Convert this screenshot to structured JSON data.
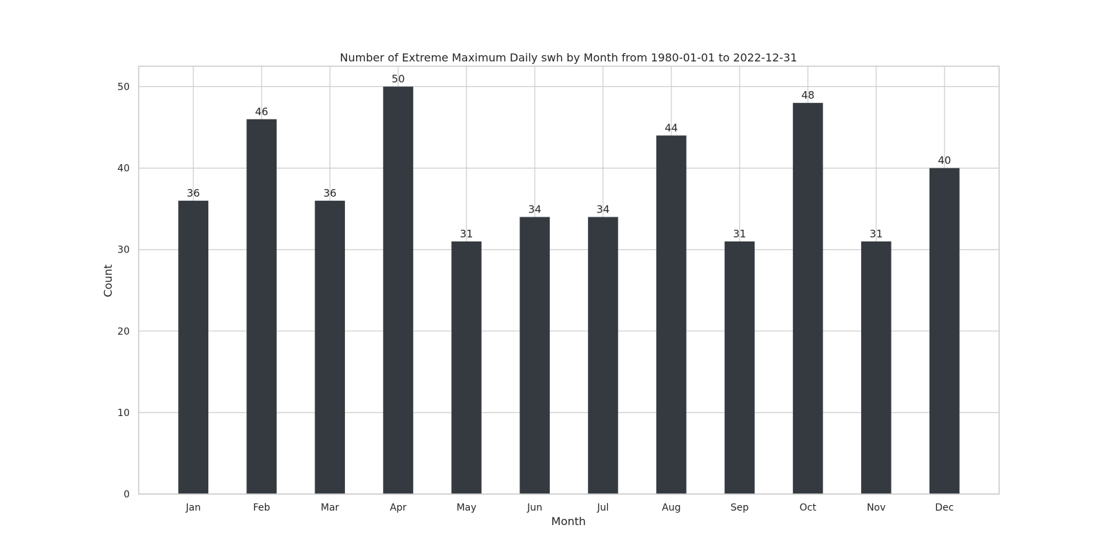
{
  "chart_data": {
    "type": "bar",
    "title": "Number of Extreme Maximum Daily swh by Month from 1980-01-01 to 2022-12-31",
    "xlabel": "Month",
    "ylabel": "Count",
    "categories": [
      "Jan",
      "Feb",
      "Mar",
      "Apr",
      "May",
      "Jun",
      "Jul",
      "Aug",
      "Sep",
      "Oct",
      "Nov",
      "Dec"
    ],
    "values": [
      36,
      46,
      36,
      50,
      31,
      34,
      34,
      44,
      31,
      48,
      31,
      40
    ],
    "yticks": [
      0,
      10,
      20,
      30,
      40,
      50
    ],
    "ylim": [
      0,
      52.5
    ],
    "grid": true,
    "bar_color": "#343a40",
    "grid_color": "#cccccc",
    "data_labels": true
  }
}
